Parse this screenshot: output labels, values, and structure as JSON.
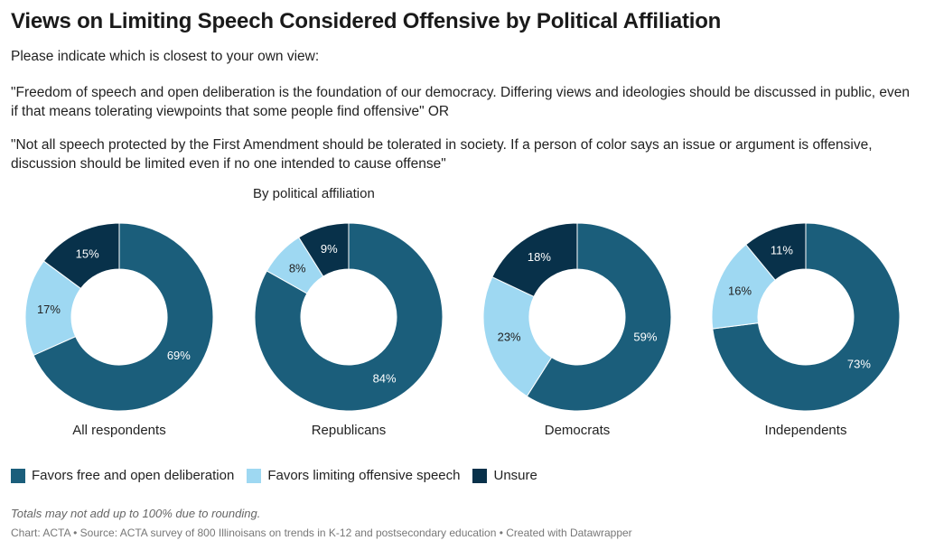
{
  "title": "Views on Limiting Speech Considered Offensive by Political Affiliation",
  "description": {
    "prompt": "Please indicate which is closest to your own view:",
    "option_a": "\"Freedom of speech and open deliberation is the foundation of our democracy.  Differing views and ideologies should be discussed in public, even if that means tolerating viewpoints that some people find offensive\" OR",
    "option_b": "\"Not all speech protected by the First Amendment should be tolerated in society.  If a person of color says an issue or argument is offensive, discussion should be limited even if no one intended to cause offense\""
  },
  "subtitle": "By political affiliation",
  "colors": {
    "favors_free": "#1b5e7b",
    "favors_limiting": "#9ed8f2",
    "unsure": "#08314a"
  },
  "chart_data": {
    "type": "pie",
    "subtype": "donut",
    "series": [
      {
        "name": "Favors free and open deliberation",
        "color": "#1b5e7b",
        "label_color": "#ffffff"
      },
      {
        "name": "Favors limiting offensive speech",
        "color": "#9ed8f2",
        "label_color": "#222222"
      },
      {
        "name": "Unsure",
        "color": "#08314a",
        "label_color": "#ffffff"
      }
    ],
    "groups": [
      {
        "name": "All respondents",
        "values": [
          69,
          17,
          15
        ]
      },
      {
        "name": "Republicans",
        "values": [
          84,
          8,
          9
        ]
      },
      {
        "name": "Democrats",
        "values": [
          59,
          23,
          18
        ]
      },
      {
        "name": "Independents",
        "values": [
          73,
          16,
          11
        ]
      }
    ],
    "value_suffix": "%",
    "legend_position": "bottom-left"
  },
  "legend": [
    {
      "label": "Favors free and open deliberation",
      "color": "#1b5e7b"
    },
    {
      "label": "Favors limiting offensive speech",
      "color": "#9ed8f2"
    },
    {
      "label": "Unsure",
      "color": "#08314a"
    }
  ],
  "note": "Totals may not add up to 100% due to rounding.",
  "source": "Chart: ACTA • Source: ACTA survey of 800 Illinoisans on trends in K-12 and postsecondary education • Created with Datawrapper"
}
